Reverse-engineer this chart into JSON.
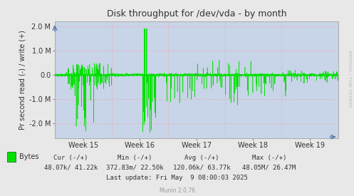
{
  "title": "Disk throughput for /dev/vda - by month",
  "ylabel": "Pr second read (-) / write (+)",
  "bg_color": "#e8e8e8",
  "plot_bg_color": "#c8d4e8",
  "line_color": "#00e000",
  "zero_line_color": "#000000",
  "x_tick_labels": [
    "Week 15",
    "Week 16",
    "Week 17",
    "Week 18",
    "Week 19"
  ],
  "ylim": [
    -2600000,
    2200000
  ],
  "y_ticks": [
    -2000000,
    -1000000,
    0,
    1000000,
    2000000
  ],
  "y_tick_labels": [
    "-2.0 M",
    "-1.0 M",
    "0.0",
    "1.0 M",
    "2.0 M"
  ],
  "legend_label": "Bytes",
  "legend_color": "#00e000",
  "cur_label": "Cur (-/+)",
  "min_label": "Min (-/+)",
  "avg_label": "Avg (-/+)",
  "max_label": "Max (-/+)",
  "cur_val": "48.07k/ 41.22k",
  "min_val": "372.83m/ 22.50k",
  "avg_val": "120.06k/ 63.77k",
  "max_val": "48.05M/ 26.47M",
  "last_update": "Last update: Fri May  9 08:00:03 2025",
  "munin_version": "Munin 2.0.76",
  "rrdtool_label": "RRDTOOL / TOBI OETIKER"
}
